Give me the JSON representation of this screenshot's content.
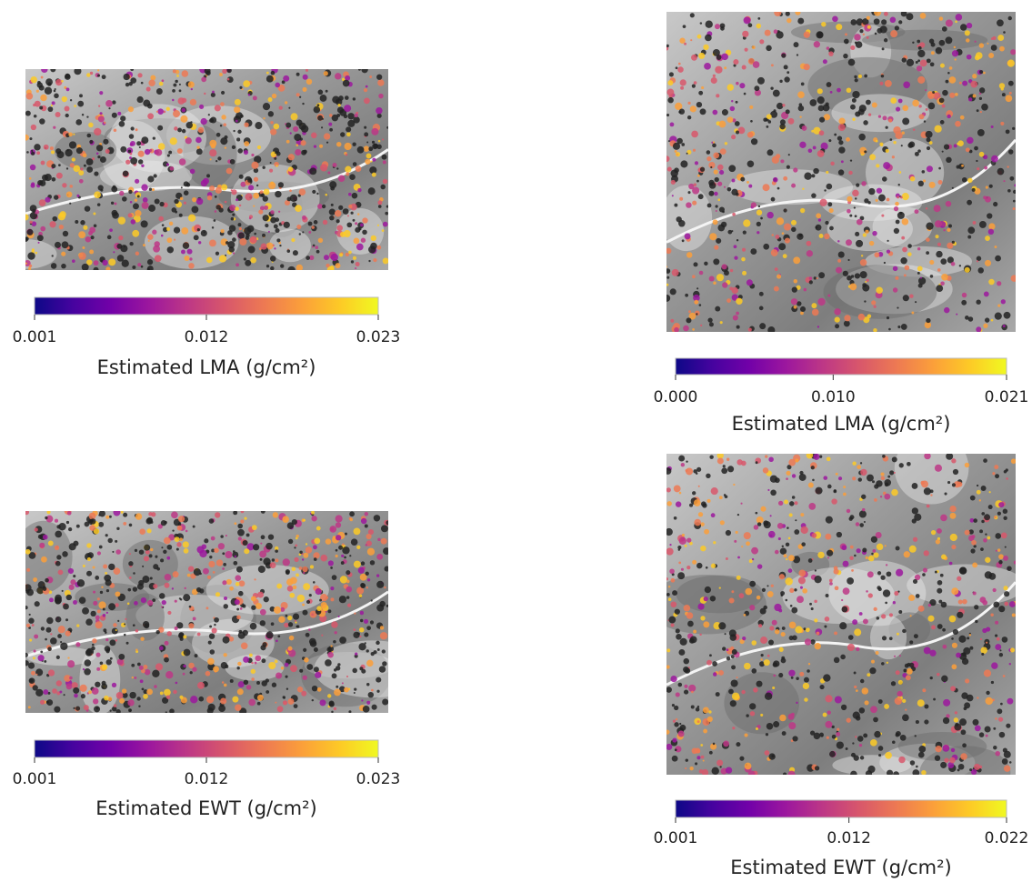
{
  "chart_data": [
    {
      "type": "image-colorbar",
      "colormap": "plasma",
      "xlabel": "Estimated LMA (g/cm²)",
      "xlim": [
        0.001,
        0.023
      ],
      "xticks": [
        0.001,
        0.012,
        0.023
      ]
    },
    {
      "type": "image-colorbar",
      "colormap": "plasma",
      "xlabel": "Estimated LMA (g/cm²)",
      "xlim": [
        0.0,
        0.021
      ],
      "xticks": [
        {
          "value": 0.0,
          "label": "0.000"
        },
        {
          "value": 0.01,
          "label": "0.010"
        },
        0.021
      ]
    },
    {
      "type": "image-colorbar",
      "colormap": "plasma",
      "xlabel": "Estimated EWT (g/cm²)",
      "xlim": [
        0.001,
        0.023
      ],
      "xticks": [
        0.001,
        0.012,
        0.023
      ]
    },
    {
      "type": "image-colorbar",
      "colormap": "plasma",
      "xlabel": "Estimated EWT (g/cm²)",
      "xlim": [
        0.001,
        0.022
      ],
      "xticks": [
        0.001,
        0.012,
        0.022
      ]
    }
  ]
}
